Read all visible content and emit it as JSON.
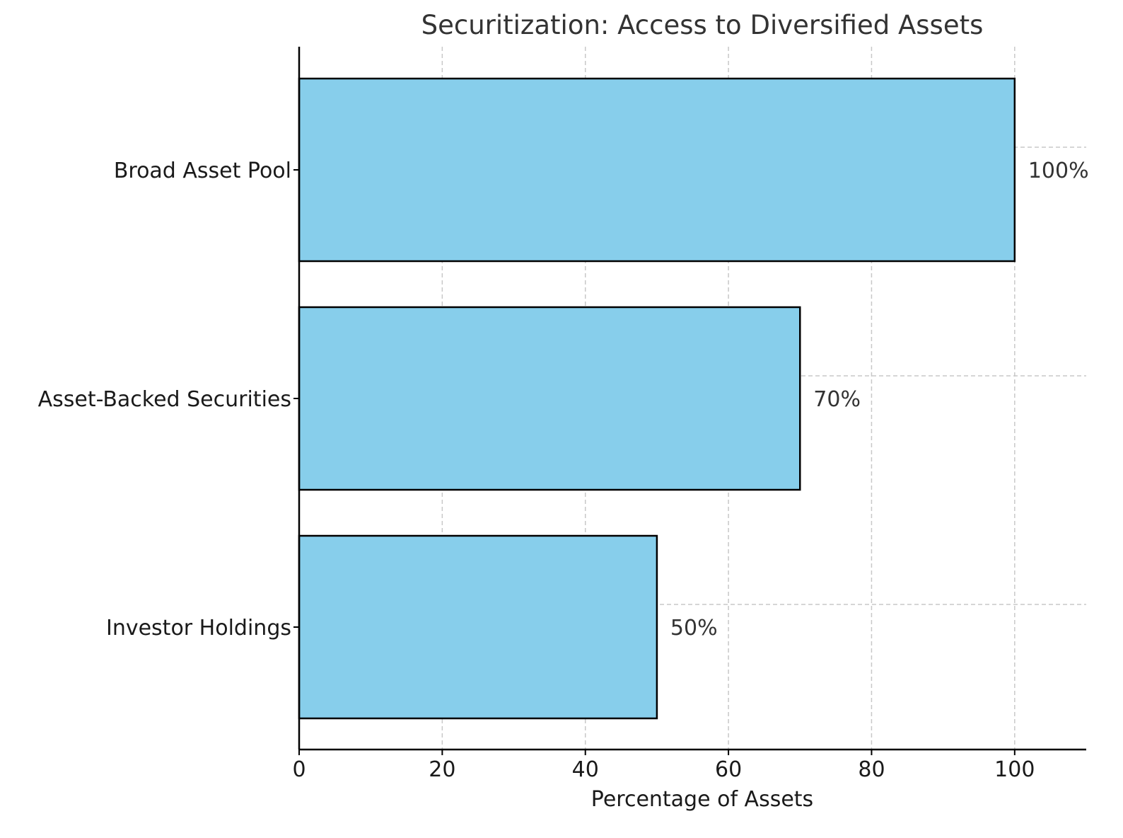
{
  "chart_data": {
    "type": "bar",
    "orientation": "horizontal",
    "title": "Securitization: Access to Diversified Assets",
    "xlabel": "Percentage of Assets",
    "ylabel": "",
    "categories": [
      "Broad Asset Pool",
      "Asset-Backed Securities",
      "Investor Holdings"
    ],
    "values": [
      100,
      70,
      50
    ],
    "value_labels": [
      "100%",
      "70%",
      "50%"
    ],
    "xlim": [
      0,
      110
    ],
    "xticks": [
      0,
      20,
      40,
      60,
      80,
      100
    ],
    "xtick_labels": [
      "0",
      "20",
      "40",
      "60",
      "80",
      "100"
    ],
    "grid": true,
    "grid_style": "dashed",
    "colors": {
      "bar_fill": "#87CEEB",
      "bar_edge": "#000000",
      "grid": "#c8c8c8",
      "text": "#333333",
      "axis": "#000000"
    }
  }
}
